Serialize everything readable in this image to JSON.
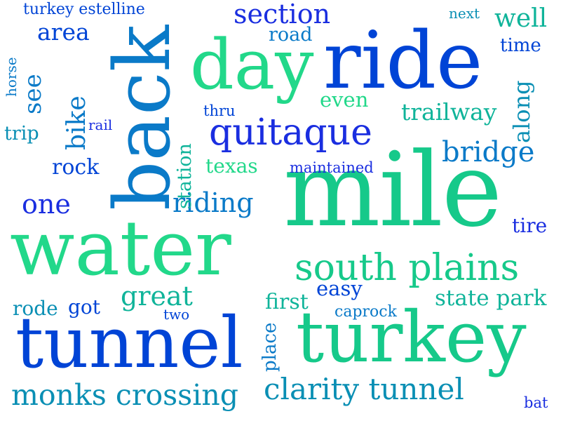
{
  "words": {
    "mile": "mile",
    "water": "water",
    "tunnel": "tunnel",
    "turkey": "turkey",
    "ride": "ride",
    "back": "back",
    "day": "day",
    "south_plains": "south plains",
    "quitaque": "quitaque",
    "monks_crossing": "monks crossing",
    "clarity_tunnel": "clarity tunnel",
    "section": "section",
    "bridge": "bridge",
    "riding": "riding",
    "great": "great",
    "one": "one",
    "bike": "bike",
    "trailway": "trailway",
    "along": "along",
    "well": "well",
    "area": "area",
    "see": "see",
    "rock": "rock",
    "texas": "texas",
    "station": "station",
    "state_park": "state park",
    "first": "first",
    "easy": "easy",
    "even": "even",
    "rode": "rode",
    "got": "got",
    "road": "road",
    "time": "time",
    "trip": "trip",
    "tire": "tire",
    "place": "place",
    "caprock": "caprock",
    "turkey_estelline": "turkey estelline",
    "maintained": "maintained",
    "thru": "thru",
    "two": "two",
    "next": "next",
    "horse": "horse",
    "rail": "rail",
    "bat": "bat"
  },
  "colors": {
    "royal_blue": "#0044d6",
    "indigo": "#1a2ee0",
    "ocean": "#0a7ac8",
    "teal_blue": "#0a8fb4",
    "teal": "#10b49a",
    "sea_green": "#16c98a",
    "mint": "#22d88a",
    "background": "#ffffff"
  }
}
